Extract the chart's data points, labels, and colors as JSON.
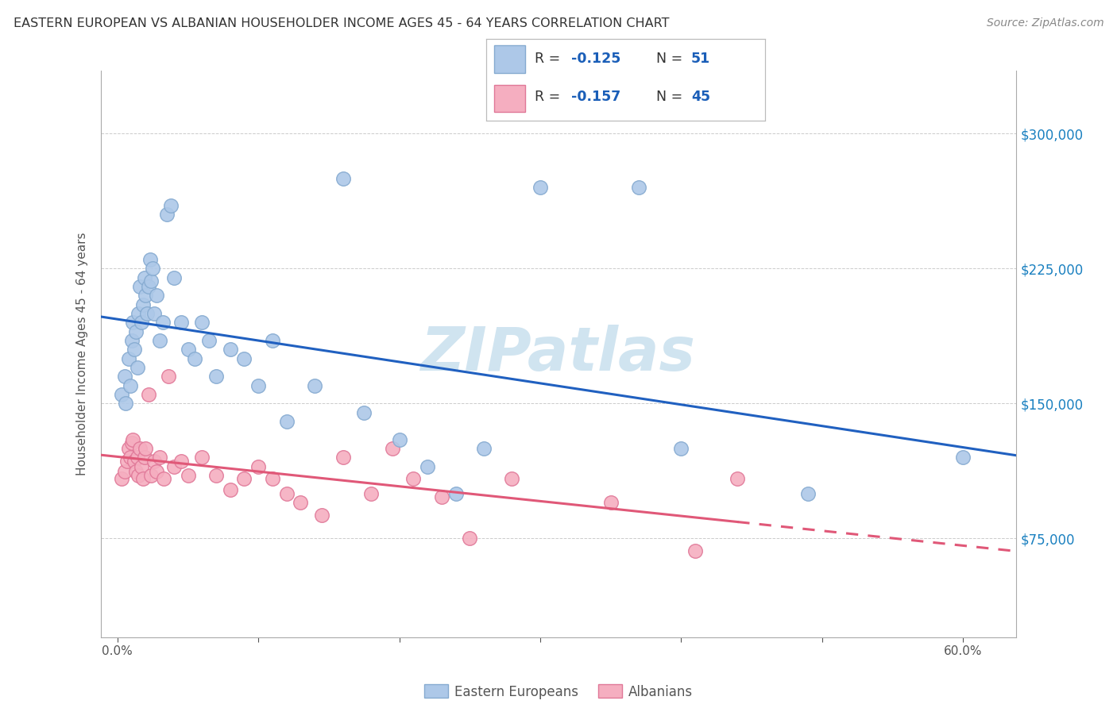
{
  "title": "EASTERN EUROPEAN VS ALBANIAN HOUSEHOLDER INCOME AGES 45 - 64 YEARS CORRELATION CHART",
  "source": "Source: ZipAtlas.com",
  "ylabel": "Householder Income Ages 45 - 64 years",
  "xlabel_ticks_show": [
    "0.0%",
    "",
    "",
    "",
    "",
    "",
    "60.0%"
  ],
  "xlabel_vals": [
    0.0,
    0.1,
    0.2,
    0.3,
    0.4,
    0.5,
    0.6
  ],
  "ytick_labels": [
    "$75,000",
    "$150,000",
    "$225,000",
    "$300,000"
  ],
  "ytick_vals": [
    75000,
    150000,
    225000,
    300000
  ],
  "xlim": [
    -0.012,
    0.638
  ],
  "ylim": [
    20000,
    335000
  ],
  "R_eastern": -0.125,
  "N_eastern": 51,
  "R_albanian": -0.157,
  "N_albanian": 45,
  "eastern_color": "#adc8e8",
  "eastern_edge": "#85aad0",
  "albanian_color": "#f5aec0",
  "albanian_edge": "#e07898",
  "line_eastern_color": "#2060c0",
  "line_albanian_color": "#e05878",
  "watermark": "ZIPatlas",
  "watermark_color": "#d0e4f0",
  "eastern_x": [
    0.003,
    0.005,
    0.006,
    0.008,
    0.009,
    0.01,
    0.011,
    0.012,
    0.013,
    0.014,
    0.015,
    0.016,
    0.017,
    0.018,
    0.019,
    0.02,
    0.021,
    0.022,
    0.023,
    0.024,
    0.025,
    0.026,
    0.028,
    0.03,
    0.032,
    0.035,
    0.038,
    0.04,
    0.045,
    0.05,
    0.055,
    0.06,
    0.065,
    0.07,
    0.08,
    0.09,
    0.1,
    0.11,
    0.12,
    0.14,
    0.16,
    0.175,
    0.2,
    0.22,
    0.24,
    0.26,
    0.3,
    0.37,
    0.4,
    0.49,
    0.6
  ],
  "eastern_y": [
    155000,
    165000,
    150000,
    175000,
    160000,
    185000,
    195000,
    180000,
    190000,
    170000,
    200000,
    215000,
    195000,
    205000,
    220000,
    210000,
    200000,
    215000,
    230000,
    218000,
    225000,
    200000,
    210000,
    185000,
    195000,
    255000,
    260000,
    220000,
    195000,
    180000,
    175000,
    195000,
    185000,
    165000,
    180000,
    175000,
    160000,
    185000,
    140000,
    160000,
    275000,
    145000,
    130000,
    115000,
    100000,
    125000,
    270000,
    270000,
    125000,
    100000,
    120000
  ],
  "albanian_x": [
    0.003,
    0.005,
    0.007,
    0.008,
    0.009,
    0.01,
    0.011,
    0.012,
    0.013,
    0.014,
    0.015,
    0.016,
    0.017,
    0.018,
    0.019,
    0.02,
    0.022,
    0.024,
    0.026,
    0.028,
    0.03,
    0.033,
    0.036,
    0.04,
    0.045,
    0.05,
    0.06,
    0.07,
    0.08,
    0.09,
    0.1,
    0.11,
    0.12,
    0.13,
    0.145,
    0.16,
    0.18,
    0.195,
    0.21,
    0.23,
    0.25,
    0.28,
    0.35,
    0.41,
    0.44
  ],
  "albanian_y": [
    108000,
    112000,
    118000,
    125000,
    120000,
    128000,
    130000,
    118000,
    112000,
    120000,
    110000,
    125000,
    115000,
    108000,
    120000,
    125000,
    155000,
    110000,
    118000,
    112000,
    120000,
    108000,
    165000,
    115000,
    118000,
    110000,
    120000,
    110000,
    102000,
    108000,
    115000,
    108000,
    100000,
    95000,
    88000,
    120000,
    100000,
    125000,
    108000,
    98000,
    75000,
    108000,
    95000,
    68000,
    108000
  ]
}
